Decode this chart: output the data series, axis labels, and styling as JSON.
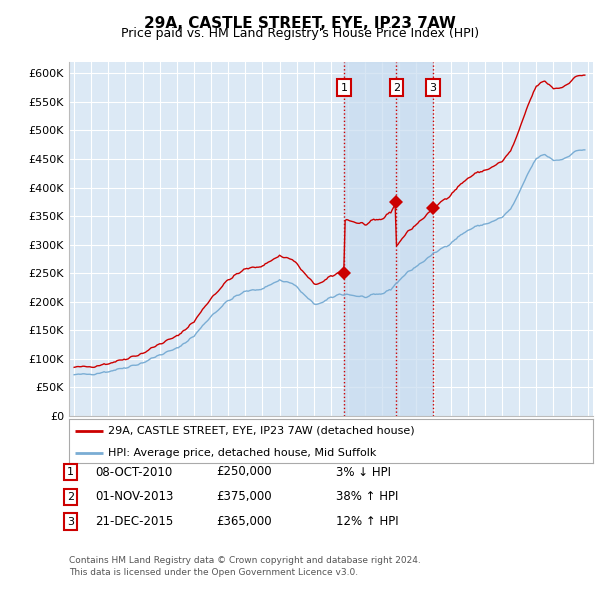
{
  "title": "29A, CASTLE STREET, EYE, IP23 7AW",
  "subtitle": "Price paid vs. HM Land Registry's House Price Index (HPI)",
  "ylim": [
    0,
    620000
  ],
  "yticks": [
    0,
    50000,
    100000,
    150000,
    200000,
    250000,
    300000,
    350000,
    400000,
    450000,
    500000,
    550000,
    600000
  ],
  "ytick_labels": [
    "£0",
    "£50K",
    "£100K",
    "£150K",
    "£200K",
    "£250K",
    "£300K",
    "£350K",
    "£400K",
    "£450K",
    "£500K",
    "£550K",
    "£600K"
  ],
  "xlim_start": 1994.7,
  "xlim_end": 2025.3,
  "background_color": "#ffffff",
  "plot_bg_color": "#dce9f5",
  "grid_color": "#ffffff",
  "red_line_color": "#cc0000",
  "blue_line_color": "#7aadd4",
  "transaction_color": "#cc0000",
  "shade_color": "#c8dcf0",
  "transactions": [
    {
      "num": 1,
      "date": "08-OCT-2010",
      "price": 250000,
      "year": 2010.78,
      "pct": "3%",
      "dir": "↓"
    },
    {
      "num": 2,
      "date": "01-NOV-2013",
      "price": 375000,
      "year": 2013.83,
      "pct": "38%",
      "dir": "↑"
    },
    {
      "num": 3,
      "date": "21-DEC-2015",
      "price": 365000,
      "year": 2015.97,
      "pct": "12%",
      "dir": "↑"
    }
  ],
  "legend_label_red": "29A, CASTLE STREET, EYE, IP23 7AW (detached house)",
  "legend_label_blue": "HPI: Average price, detached house, Mid Suffolk",
  "footer_line1": "Contains HM Land Registry data © Crown copyright and database right 2024.",
  "footer_line2": "This data is licensed under the Open Government Licence v3.0."
}
